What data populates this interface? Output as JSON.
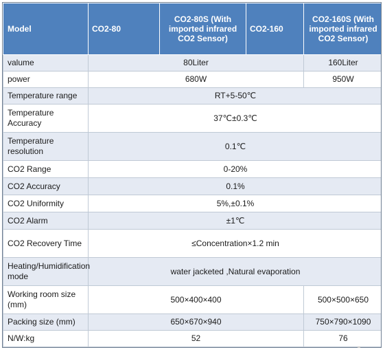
{
  "table": {
    "header": {
      "label": "Model",
      "models": [
        "CO2-80",
        "CO2-80S (With imported infrared CO2 Sensor)",
        "CO2-160",
        "CO2-160S (With imported infrared CO2 Sensor)"
      ]
    },
    "rows": [
      {
        "label": "valume",
        "values": [
          "80Liter",
          "160Liter"
        ]
      },
      {
        "label": "power",
        "values": [
          "680W",
          "950W"
        ]
      },
      {
        "label": "Temperature range",
        "value": "RT+5-50℃"
      },
      {
        "label": "Temperature Accuracy",
        "value": "37℃±0.3℃"
      },
      {
        "label": "Temperature resolution",
        "value": "0.1℃"
      },
      {
        "label": "CO2 Range",
        "value": "0-20%"
      },
      {
        "label": "CO2 Accuracy",
        "value": "0.1%"
      },
      {
        "label": "CO2 Uniformity",
        "value": "5%,±0.1%"
      },
      {
        "label": "CO2 Alarm",
        "value": "±1℃"
      },
      {
        "label": "CO2 Recovery Time",
        "value": "≤Concentration×1.2 min"
      },
      {
        "label": "Heating/Humidification mode",
        "value": "water jacketed ,Natural evaporation"
      },
      {
        "label": "Working room size (mm)",
        "values": [
          "500×400×400",
          "500×500×650"
        ]
      },
      {
        "label": "Packing size (mm)",
        "values": [
          "650×670×940",
          "750×790×1090"
        ]
      },
      {
        "label": "N/W:kg",
        "values": [
          "52",
          "76"
        ]
      }
    ]
  },
  "colors": {
    "header_bg": "#4f81bd",
    "header_text": "#ffffff",
    "band_bg": "#e5eaf3",
    "plain_bg": "#ffffff",
    "grid": "#bfc9d5"
  }
}
